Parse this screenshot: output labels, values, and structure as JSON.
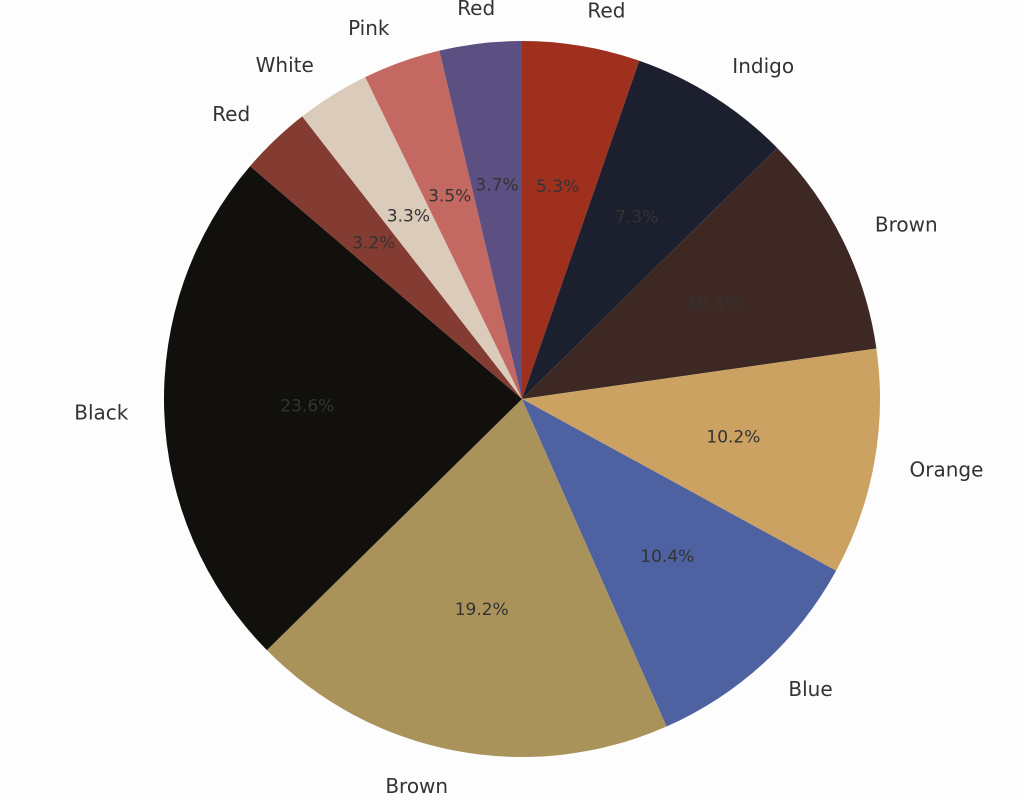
{
  "chart_data": {
    "type": "pie",
    "slices": [
      {
        "label": "Red",
        "value": 5.3,
        "pct_label": "5.3%",
        "color": "#a0301e"
      },
      {
        "label": "Indigo",
        "value": 7.3,
        "pct_label": "7.3%",
        "color": "#1c1f2e"
      },
      {
        "label": "Brown",
        "value": 10.1,
        "pct_label": "10.1%",
        "color": "#3d2824"
      },
      {
        "label": "Orange",
        "value": 10.2,
        "pct_label": "10.2%",
        "color": "#cba262"
      },
      {
        "label": "Blue",
        "value": 10.4,
        "pct_label": "10.4%",
        "color": "#4e61a0"
      },
      {
        "label": "Brown",
        "value": 19.2,
        "pct_label": "19.2%",
        "color": "#aa935b"
      },
      {
        "label": "Black",
        "value": 23.6,
        "pct_label": "23.6%",
        "color": "#12100d"
      },
      {
        "label": "Red",
        "value": 3.2,
        "pct_label": "3.2%",
        "color": "#843c32"
      },
      {
        "label": "White",
        "value": 3.3,
        "pct_label": "3.3%",
        "color": "#dbcbbb"
      },
      {
        "label": "Pink",
        "value": 3.5,
        "pct_label": "3.5%",
        "color": "#c46962"
      },
      {
        "label": "Red",
        "value": 3.7,
        "pct_label": "3.7%",
        "color": "#5c4f81"
      }
    ],
    "start": "top",
    "direction": "clockwise",
    "legend": "none"
  }
}
